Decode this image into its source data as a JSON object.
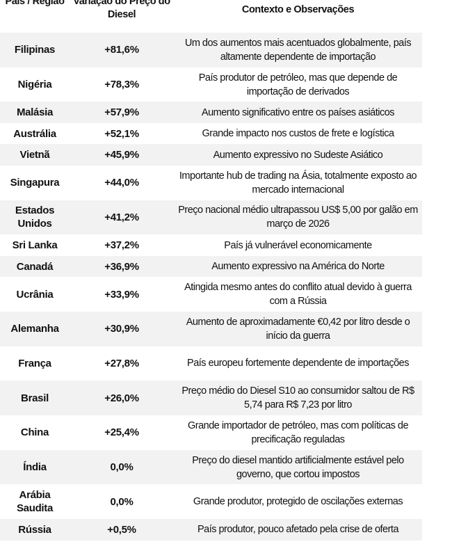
{
  "header": {
    "country": "País / Região",
    "variation": "Variação do Preço do Diesel",
    "context": "Contexto e Observações"
  },
  "rows": [
    {
      "country": "Filipinas",
      "variation": "+81,6%",
      "context": "Um dos aumentos mais acentuados globalmente, país altamente dependente de importação"
    },
    {
      "country": "Nigéria",
      "variation": "+78,3%",
      "context": "País produtor de petróleo, mas que depende de importação de derivados"
    },
    {
      "country": "Malásia",
      "variation": "+57,9%",
      "context": "Aumento significativo entre os países asiáticos"
    },
    {
      "country": "Austrália",
      "variation": "+52,1%",
      "context": "Grande impacto nos custos de frete e logística"
    },
    {
      "country": "Vietnã",
      "variation": "+45,9%",
      "context": "Aumento expressivo no Sudeste Asiático"
    },
    {
      "country": "Singapura",
      "variation": "+44,0%",
      "context": "Importante hub de trading na Ásia, totalmente exposto ao mercado internacional"
    },
    {
      "country": "Estados Unidos",
      "variation": "+41,2%",
      "context": "Preço nacional médio ultrapassou US$ 5,00 por galão em março de 2026"
    },
    {
      "country": "Sri Lanka",
      "variation": "+37,2%",
      "context": "País já vulnerável economicamente"
    },
    {
      "country": "Canadá",
      "variation": "+36,9%",
      "context": "Aumento expressivo na América do Norte"
    },
    {
      "country": "Ucrânia",
      "variation": "+33,9%",
      "context": "Atingida mesmo antes do conflito atual devido à guerra com a Rússia"
    },
    {
      "country": "Alemanha",
      "variation": "+30,9%",
      "context": "Aumento de aproximadamente €0,42 por litro desde o início da guerra"
    },
    {
      "country": "França",
      "variation": "+27,8%",
      "context": "País europeu fortemente dependente de importações"
    },
    {
      "country": "Brasil",
      "variation": "+26,0%",
      "context": "Preço médio do Diesel S10 ao consumidor saltou de R$ 5,74 para R$ 7,23 por litro"
    },
    {
      "country": "China",
      "variation": "+25,4%",
      "context": "Grande importador de petróleo, mas com políticas de precificação reguladas"
    },
    {
      "country": "Índia",
      "variation": "0,0%",
      "context": "Preço do diesel mantido artificialmente estável pelo governo, que cortou impostos"
    },
    {
      "country": "Arábia Saudita",
      "variation": "0,0%",
      "context": "Grande produtor, protegido de oscilações externas"
    },
    {
      "country": "Rússia",
      "variation": "+0,5%",
      "context": "País produtor, pouco afetado pela crise de oferta"
    }
  ]
}
